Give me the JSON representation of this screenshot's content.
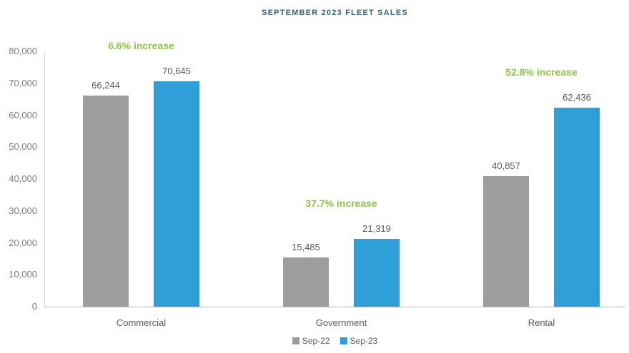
{
  "title": "SEPTEMBER 2023 FLEET SALES",
  "chart_data": {
    "type": "bar",
    "title": "SEPTEMBER 2023 FLEET SALES",
    "categories": [
      "Commercial",
      "Government",
      "Rental"
    ],
    "series": [
      {
        "name": "Sep-22",
        "color": "#9d9d9d",
        "values": [
          66244,
          15485,
          40857
        ]
      },
      {
        "name": "Sep-23",
        "color": "#2e9fd8",
        "values": [
          70645,
          21319,
          62436
        ]
      }
    ],
    "value_labels": [
      [
        "66,244",
        "15,485",
        "40,857"
      ],
      [
        "70,645",
        "21,319",
        "62,436"
      ]
    ],
    "annotations": [
      "6.6% increase",
      "37.7% increase",
      "52.8% increase"
    ],
    "annotation_color": "#8cc63e",
    "xlabel": "",
    "ylabel": "",
    "ylim": [
      0,
      80000
    ],
    "ytick_step": 10000,
    "yticks": [
      "80,000",
      "70,000",
      "60,000",
      "50,000",
      "40,000",
      "30,000",
      "20,000",
      "10,000",
      "0"
    ],
    "grid": false,
    "legend_position": "bottom"
  }
}
